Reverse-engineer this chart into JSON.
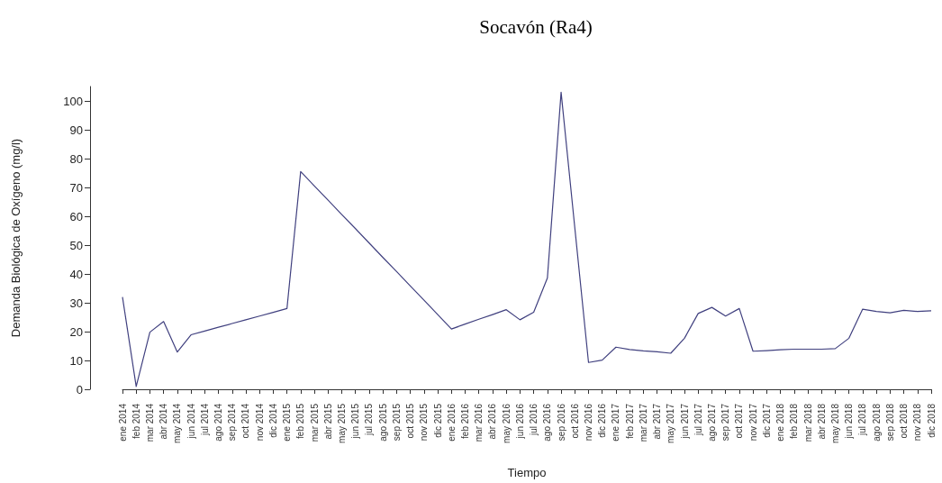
{
  "chart_data": {
    "type": "line",
    "title": "Socavón (Ra4)",
    "xlabel": "Tiempo",
    "ylabel": "Demanda Biológica de Oxígeno (mg/l)",
    "categories": [
      "ene 2014",
      "feb 2014",
      "mar 2014",
      "abr 2014",
      "may 2014",
      "jun 2014",
      "jul 2014",
      "ago 2014",
      "sep 2014",
      "oct 2014",
      "nov 2014",
      "dic 2014",
      "ene 2015",
      "feb 2015",
      "mar 2015",
      "abr 2015",
      "may 2015",
      "jun 2015",
      "jul 2015",
      "ago 2015",
      "sep 2015",
      "oct 2015",
      "nov 2015",
      "dic 2015",
      "ene 2016",
      "feb 2016",
      "mar 2016",
      "abr 2016",
      "may 2016",
      "jun 2016",
      "jul 2016",
      "ago 2016",
      "sep 2016",
      "oct 2016",
      "nov 2016",
      "dic 2016",
      "ene 2017",
      "feb 2017",
      "mar 2017",
      "abr 2017",
      "may 2017",
      "jun 2017",
      "jul 2017",
      "ago 2017",
      "sep 2017",
      "oct 2017",
      "nov 2017",
      "dic 2017",
      "ene 2018",
      "feb 2018",
      "mar 2018",
      "abr 2018",
      "may 2018",
      "jun 2018",
      "jul 2018",
      "ago 2018",
      "sep 2018",
      "oct 2018",
      "nov 2018",
      "dic 2018"
    ],
    "series": [
      {
        "color": "#40407f",
        "values": [
          32,
          1,
          19.8,
          23.5,
          12.9,
          18.9,
          20.2,
          21.5,
          22.8,
          24.1,
          25.4,
          26.7,
          28,
          75.5,
          70.5,
          65.6,
          60.6,
          55.7,
          50.7,
          45.7,
          40.8,
          35.8,
          30.9,
          25.9,
          20.9,
          22.6,
          24.3,
          25.9,
          27.6,
          24.1,
          26.7,
          38.6,
          103,
          56,
          9.3,
          10.1,
          14.6,
          13.8,
          13.3,
          13,
          12.5,
          17.7,
          26.3,
          28.4,
          25.4,
          28,
          13.2,
          13.4,
          13.7,
          13.9,
          13.9,
          13.9,
          14.1,
          17.7,
          27.8,
          27,
          26.5,
          27.4,
          27,
          27.2
        ]
      }
    ],
    "ylim": [
      0,
      105
    ],
    "yticks": [
      0,
      10,
      20,
      30,
      40,
      50,
      60,
      70,
      80,
      90,
      100
    ],
    "marker": "none",
    "line_style": "solid"
  }
}
